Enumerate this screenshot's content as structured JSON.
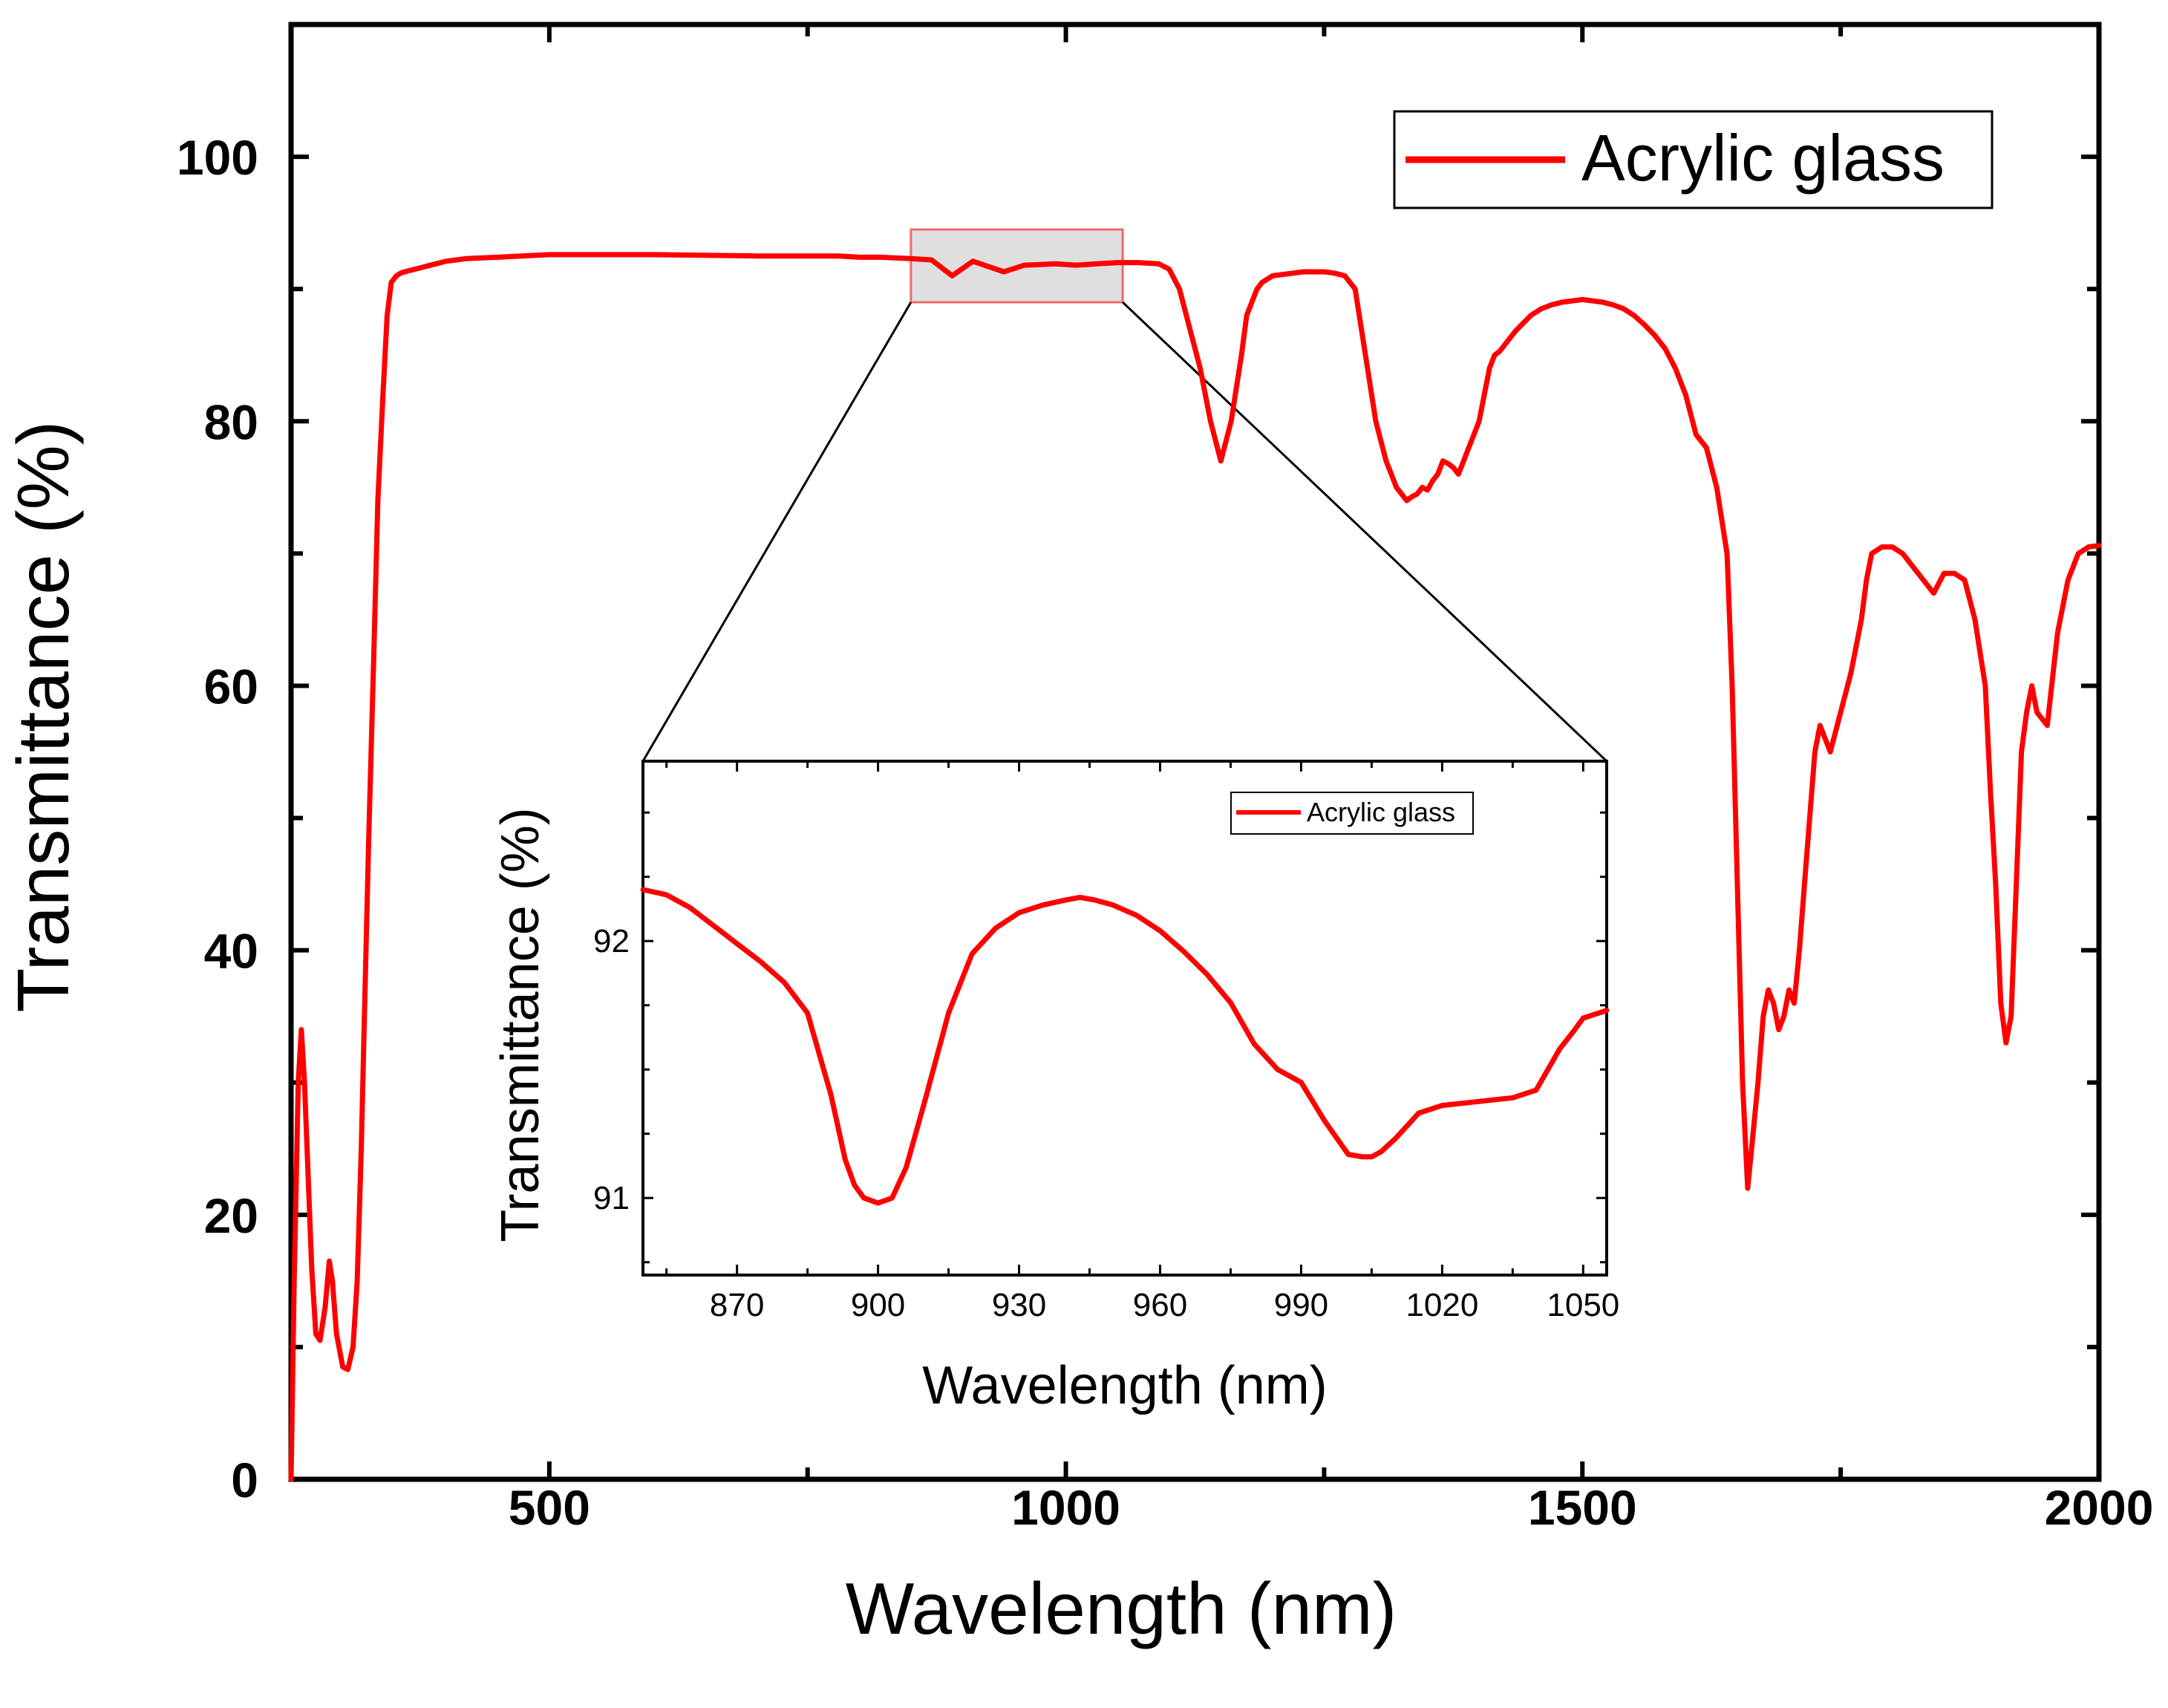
{
  "chart_data": [
    {
      "type": "line",
      "role": "main",
      "xlabel": "Wavelength (nm)",
      "ylabel": "Transmittance (%)",
      "xlim": [
        250,
        2000
      ],
      "ylim": [
        0,
        110
      ],
      "xticks": [
        500,
        1000,
        1500,
        2000
      ],
      "xtick_labels": [
        "500",
        "1000",
        "1500",
        "2000"
      ],
      "yticks": [
        0,
        20,
        40,
        60,
        80,
        100
      ],
      "ytick_labels": [
        "0",
        "20",
        "40",
        "60",
        "80",
        "100"
      ],
      "legend": {
        "label": "Acrylic glass",
        "placement": "top-right"
      },
      "highlight_box": {
        "x_range": [
          850,
          1055
        ],
        "y_range": [
          89,
          94.5
        ]
      },
      "series": [
        {
          "name": "Acrylic glass",
          "color": "#ff0000",
          "x": [
            250,
            253,
            257,
            260,
            263,
            266,
            270,
            274,
            278,
            283,
            287,
            290,
            294,
            300,
            305,
            310,
            314,
            318,
            321,
            325,
            330,
            334,
            339,
            343,
            347,
            352,
            356,
            360,
            365,
            370,
            375,
            380,
            385,
            390,
            395,
            400,
            410,
            420,
            450,
            500,
            550,
            600,
            700,
            750,
            780,
            800,
            820,
            850,
            870,
            890,
            910,
            940,
            960,
            990,
            1010,
            1030,
            1050,
            1070,
            1090,
            1100,
            1110,
            1120,
            1130,
            1140,
            1150,
            1160,
            1170,
            1175,
            1180,
            1185,
            1190,
            1200,
            1210,
            1220,
            1230,
            1240,
            1250,
            1260,
            1270,
            1280,
            1290,
            1300,
            1310,
            1315,
            1320,
            1325,
            1330,
            1335,
            1340,
            1345,
            1350,
            1355,
            1360,
            1365,
            1370,
            1375,
            1380,
            1385,
            1390,
            1395,
            1400,
            1405,
            1410,
            1415,
            1420,
            1425,
            1430,
            1435,
            1440,
            1445,
            1450,
            1460,
            1470,
            1480,
            1490,
            1500,
            1510,
            1520,
            1530,
            1540,
            1550,
            1560,
            1570,
            1580,
            1590,
            1600,
            1610,
            1620,
            1630,
            1640,
            1645,
            1650,
            1655,
            1660,
            1665,
            1670,
            1675,
            1680,
            1685,
            1690,
            1695,
            1700,
            1705,
            1710,
            1715,
            1720,
            1725,
            1730,
            1740,
            1750,
            1760,
            1770,
            1775,
            1780,
            1790,
            1800,
            1810,
            1820,
            1830,
            1840,
            1850,
            1860,
            1870,
            1880,
            1890,
            1895,
            1900,
            1905,
            1910,
            1915,
            1920,
            1925,
            1930,
            1935,
            1940,
            1950,
            1960,
            1970,
            1980,
            1990,
            2000
          ],
          "y": [
            0,
            15,
            30,
            34,
            30,
            24,
            16,
            11,
            10.5,
            13,
            16.5,
            15,
            11,
            8.5,
            8.3,
            10,
            15,
            25,
            35,
            48,
            62,
            74,
            82,
            88,
            90.5,
            91,
            91.2,
            91.3,
            91.4,
            91.5,
            91.6,
            91.7,
            91.8,
            91.9,
            92,
            92.1,
            92.2,
            92.3,
            92.4,
            92.6,
            92.6,
            92.6,
            92.5,
            92.5,
            92.5,
            92.4,
            92.4,
            92.3,
            92.2,
            91,
            92.1,
            91.3,
            91.8,
            91.9,
            91.8,
            91.9,
            92,
            92,
            91.9,
            91.5,
            90,
            87,
            84,
            80,
            77,
            80,
            85,
            88,
            89,
            90,
            90.5,
            91,
            91.1,
            91.2,
            91.3,
            91.3,
            91.3,
            91.2,
            91,
            90,
            85,
            80,
            77,
            76,
            75,
            74.5,
            74,
            74.3,
            74.5,
            75,
            74.8,
            75.5,
            76,
            77,
            76.8,
            76.5,
            76,
            77,
            78,
            79,
            80,
            82,
            84,
            85,
            85.3,
            85.8,
            86.3,
            86.8,
            87.2,
            87.6,
            88,
            88.5,
            88.8,
            89,
            89.1,
            89.2,
            89.1,
            89,
            88.8,
            88.5,
            88,
            87.3,
            86.5,
            85.5,
            84,
            82,
            79,
            78,
            75,
            70,
            60,
            45,
            30,
            22,
            26,
            30,
            35,
            37,
            36,
            34,
            35,
            37,
            36,
            40,
            45,
            50,
            55,
            57,
            55,
            58,
            61,
            65,
            68,
            70,
            70.5,
            70.5,
            70,
            69,
            68,
            67,
            68.5,
            68.5,
            68,
            65,
            60,
            52,
            45,
            36,
            33,
            35,
            45,
            55,
            58,
            60,
            58,
            57,
            64,
            68,
            70,
            70.5,
            70.6
          ]
        }
      ]
    },
    {
      "type": "line",
      "role": "inset",
      "xlabel": "Wavelength (nm)",
      "ylabel": "Transmittance (%)",
      "xlim": [
        850,
        1055
      ],
      "ylim": [
        90.7,
        92.7
      ],
      "xticks": [
        870,
        900,
        930,
        960,
        990,
        1020,
        1050
      ],
      "xtick_labels": [
        "870",
        "900",
        "930",
        "960",
        "990",
        "1020",
        "1050"
      ],
      "yticks": [
        91,
        92
      ],
      "ytick_labels": [
        "91",
        "92"
      ],
      "legend": {
        "label": "Acrylic glass",
        "placement": "top-right"
      },
      "series": [
        {
          "name": "Acrylic glass",
          "color": "#ff0000",
          "x": [
            850,
            855,
            860,
            865,
            870,
            875,
            880,
            885,
            890,
            893,
            895,
            897,
            900,
            903,
            906,
            910,
            915,
            920,
            925,
            930,
            935,
            940,
            943,
            946,
            950,
            955,
            960,
            965,
            970,
            975,
            980,
            985,
            990,
            995,
            1000,
            1003,
            1005,
            1007,
            1010,
            1015,
            1020,
            1025,
            1030,
            1035,
            1040,
            1045,
            1048,
            1050,
            1055
          ],
          "y": [
            92.2,
            92.18,
            92.13,
            92.06,
            91.99,
            91.92,
            91.84,
            91.72,
            91.4,
            91.15,
            91.05,
            91.0,
            90.98,
            91.0,
            91.12,
            91.38,
            91.72,
            91.95,
            92.05,
            92.11,
            92.14,
            92.16,
            92.17,
            92.16,
            92.14,
            92.1,
            92.04,
            91.96,
            91.87,
            91.76,
            91.6,
            91.5,
            91.45,
            91.3,
            91.17,
            91.16,
            91.16,
            91.18,
            91.23,
            91.33,
            91.36,
            91.37,
            91.38,
            91.39,
            91.42,
            91.58,
            91.65,
            91.7,
            91.73
          ]
        }
      ]
    }
  ]
}
